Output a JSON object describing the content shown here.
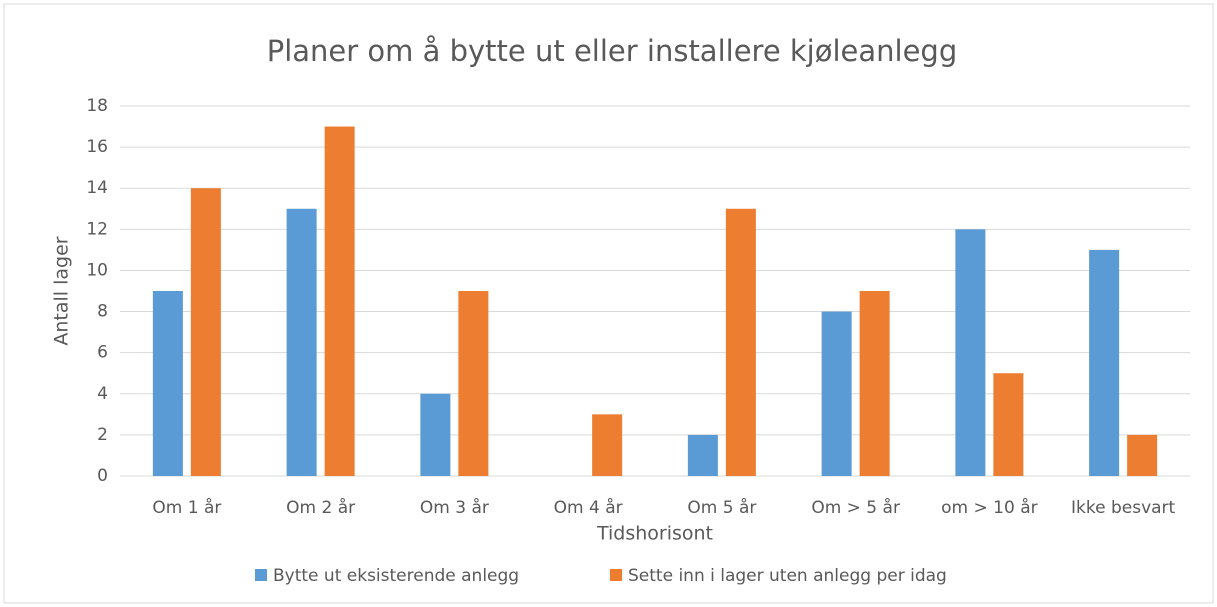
{
  "chart_data": {
    "type": "bar",
    "title": "Planer om å bytte ut eller installere kjøleanlegg",
    "x_label": "Tidshorisont",
    "y_label": "Antall lager",
    "categories": [
      "Om 1 år",
      "Om 2 år",
      "Om 3 år",
      "Om 4 år",
      "Om 5 år",
      "Om > 5 år",
      "om > 10 år",
      "Ikke besvart"
    ],
    "series": [
      {
        "name": "Bytte ut eksisterende anlegg",
        "color": "#5b9bd5",
        "values": [
          9,
          13,
          4,
          0,
          2,
          8,
          12,
          11
        ]
      },
      {
        "name": "Sette inn i lager uten anlegg per idag",
        "color": "#ed7d31",
        "values": [
          14,
          17,
          9,
          3,
          13,
          9,
          5,
          2
        ]
      }
    ],
    "ylim": [
      0,
      18
    ],
    "yticks": [
      0,
      2,
      4,
      6,
      8,
      10,
      12,
      14,
      16,
      18
    ],
    "grid": true,
    "legend": "bottom"
  }
}
